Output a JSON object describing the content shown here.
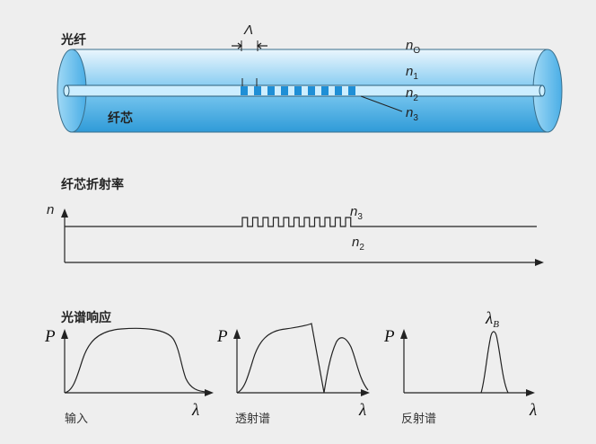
{
  "fiber": {
    "title": "光纤",
    "core_label": "纤芯",
    "period_symbol": "Λ",
    "outer_index": {
      "base": "n",
      "sub": "O"
    },
    "cladding_index": {
      "base": "n",
      "sub": "1"
    },
    "core_index": {
      "base": "n",
      "sub": "2"
    },
    "grating_index": {
      "base": "n",
      "sub": "3"
    },
    "grating_fringe_count": 9,
    "colors": {
      "cladding": "#7cc8f0",
      "core": "#cdeeff",
      "grating": "#1f8fd6"
    }
  },
  "profile": {
    "title": "纤芯折射率",
    "y_axis": "n",
    "high_label": {
      "base": "n",
      "sub": "3"
    },
    "low_label": {
      "base": "n",
      "sub": "2"
    },
    "pulse_count": 11
  },
  "spectra": {
    "title": "光谱响应",
    "y_axis": "P",
    "x_axis": "λ",
    "panels": [
      {
        "caption": "输入"
      },
      {
        "caption": "透射谱"
      },
      {
        "caption": "反射谱",
        "peak": {
          "base": "λ",
          "sub": "B"
        }
      }
    ]
  }
}
